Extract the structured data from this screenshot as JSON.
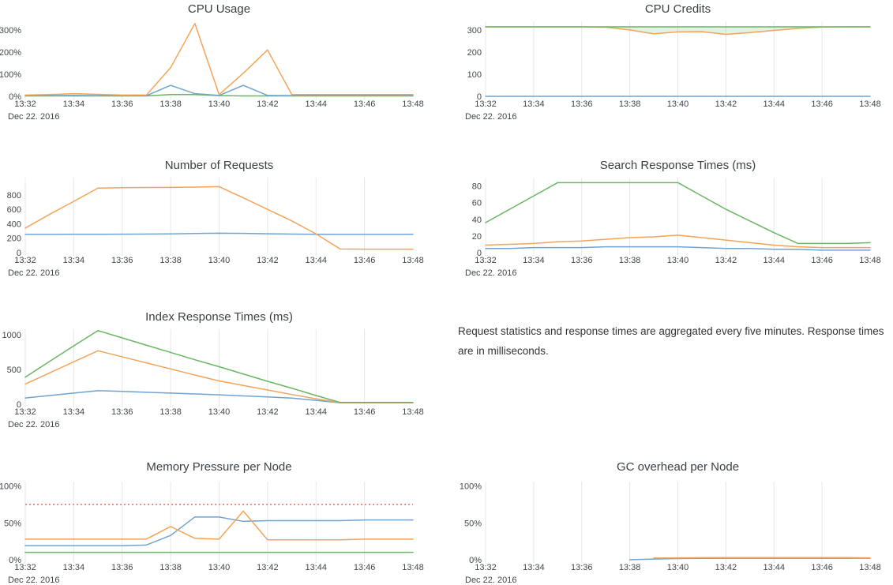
{
  "colors": {
    "blue": "#6fa3d0",
    "orange": "#f2a45a",
    "green": "#69b662",
    "red": "#ee8f8f",
    "grid": "#e7e7e7",
    "tick_text": "#40464b",
    "title_text": "#3b4045"
  },
  "x_axis": {
    "ticks": [
      "13:32",
      "13:34",
      "13:36",
      "13:38",
      "13:40",
      "13:42",
      "13:44",
      "13:46",
      "13:48"
    ],
    "date_label": "Dec 22. 2016",
    "point_interval": "1 minute"
  },
  "note": {
    "text": "Request statistics and response times are aggregated every five minutes. Response times are in milliseconds."
  },
  "chart_data": [
    {
      "type": "line",
      "title": "CPU Usage",
      "ylim": [
        0,
        340
      ],
      "grid": false,
      "x_range": [
        "13:32",
        "13:48"
      ],
      "y_ticks": [
        {
          "value": 0,
          "label": "0%"
        },
        {
          "value": 100,
          "label": "100%"
        },
        {
          "value": 200,
          "label": "200%"
        },
        {
          "value": 300,
          "label": "300%"
        }
      ],
      "series": [
        {
          "name": "green",
          "color": "green",
          "values": [
            2,
            2,
            2,
            2,
            2,
            2,
            8,
            8,
            3,
            2,
            2,
            2,
            2,
            2,
            2,
            2,
            2
          ]
        },
        {
          "name": "blue",
          "color": "blue",
          "values": [
            3,
            3,
            4,
            3,
            3,
            3,
            50,
            12,
            4,
            50,
            4,
            3,
            3,
            3,
            3,
            3,
            3
          ]
        },
        {
          "name": "orange",
          "color": "orange",
          "values": [
            6,
            8,
            12,
            9,
            6,
            6,
            130,
            330,
            8,
            105,
            210,
            8,
            8,
            8,
            8,
            8,
            8
          ]
        }
      ]
    },
    {
      "type": "line",
      "title": "CPU Credits",
      "ylim": [
        0,
        340
      ],
      "grid": true,
      "x_range": [
        "13:32",
        "13:48"
      ],
      "y_ticks": [
        {
          "value": 0,
          "label": "0"
        },
        {
          "value": 100,
          "label": "100"
        },
        {
          "value": 200,
          "label": "200"
        },
        {
          "value": 300,
          "label": "300"
        }
      ],
      "fill_between": {
        "upper": "green",
        "lower": "orange",
        "opacity": 0.18
      },
      "series": [
        {
          "name": "blue",
          "color": "blue",
          "values": [
            0,
            0,
            0,
            0,
            0,
            0,
            0,
            0,
            0,
            0,
            0,
            0,
            0,
            0,
            0,
            0,
            0
          ]
        },
        {
          "name": "orange",
          "color": "orange",
          "values": [
            315,
            315,
            315,
            315,
            315,
            313,
            301,
            283,
            292,
            293,
            281,
            289,
            299,
            308,
            314,
            315,
            315
          ]
        },
        {
          "name": "green",
          "color": "green",
          "values": [
            315,
            315,
            315,
            315,
            315,
            315,
            315,
            315,
            315,
            315,
            315,
            315,
            315,
            315,
            315,
            315,
            315
          ]
        }
      ]
    },
    {
      "type": "line",
      "title": "Number of Requests",
      "ylim": [
        0,
        1040
      ],
      "grid": true,
      "x_range": [
        "13:32",
        "13:48"
      ],
      "y_ticks": [
        {
          "value": 0,
          "label": "0"
        },
        {
          "value": 200,
          "label": "200"
        },
        {
          "value": 400,
          "label": "400"
        },
        {
          "value": 600,
          "label": "600"
        },
        {
          "value": 800,
          "label": "800"
        }
      ],
      "series": [
        {
          "name": "blue",
          "color": "blue",
          "values": [
            253,
            253,
            254,
            255,
            256,
            257,
            260,
            265,
            270,
            267,
            262,
            257,
            254,
            253,
            253,
            253,
            254
          ]
        },
        {
          "name": "orange",
          "color": "orange",
          "values": [
            340,
            530,
            710,
            895,
            900,
            903,
            905,
            908,
            915,
            760,
            600,
            440,
            260,
            50,
            48,
            48,
            48
          ]
        }
      ]
    },
    {
      "type": "line",
      "title": "Search Response Times (ms)",
      "ylim": [
        0,
        90
      ],
      "grid": true,
      "x_range": [
        "13:32",
        "13:48"
      ],
      "y_ticks": [
        {
          "value": 0,
          "label": "0"
        },
        {
          "value": 20,
          "label": "20"
        },
        {
          "value": 40,
          "label": "40"
        },
        {
          "value": 60,
          "label": "60"
        },
        {
          "value": 80,
          "label": "80"
        }
      ],
      "series": [
        {
          "name": "blue",
          "color": "blue",
          "values": [
            5,
            5,
            6,
            6,
            6,
            7,
            7,
            7,
            7,
            6,
            5,
            5,
            4,
            4,
            3,
            3,
            3
          ]
        },
        {
          "name": "orange",
          "color": "orange",
          "values": [
            9,
            10,
            11,
            13,
            14,
            16,
            18,
            19,
            21,
            18,
            15,
            12,
            9,
            7,
            6,
            6,
            6
          ]
        },
        {
          "name": "green",
          "color": "green",
          "values": [
            36,
            52,
            68,
            84,
            84,
            84,
            84,
            84,
            84,
            68,
            52,
            38,
            24,
            11,
            11,
            11,
            12
          ]
        }
      ]
    },
    {
      "type": "line",
      "title": "Index Response Times (ms)",
      "ylim": [
        0,
        1080
      ],
      "grid": true,
      "x_range": [
        "13:32",
        "13:48"
      ],
      "y_ticks": [
        {
          "value": 0,
          "label": "0"
        },
        {
          "value": 500,
          "label": "500"
        },
        {
          "value": 1000,
          "label": "1000"
        }
      ],
      "series": [
        {
          "name": "blue",
          "color": "blue",
          "values": [
            90,
            125,
            160,
            195,
            185,
            172,
            160,
            148,
            135,
            120,
            105,
            88,
            55,
            20,
            20,
            20,
            20
          ]
        },
        {
          "name": "orange",
          "color": "orange",
          "values": [
            290,
            450,
            610,
            770,
            683,
            595,
            508,
            420,
            335,
            270,
            205,
            140,
            78,
            22,
            22,
            22,
            22
          ]
        },
        {
          "name": "green",
          "color": "green",
          "values": [
            390,
            615,
            840,
            1060,
            955,
            850,
            745,
            640,
            540,
            435,
            330,
            230,
            125,
            25,
            25,
            25,
            25
          ]
        }
      ]
    },
    {
      "type": "line",
      "title": "Memory Pressure per Node",
      "ylim": [
        0,
        106
      ],
      "grid": true,
      "x_range": [
        "13:32",
        "13:48"
      ],
      "y_ticks": [
        {
          "value": 0,
          "label": "0%"
        },
        {
          "value": 50,
          "label": "50%"
        },
        {
          "value": 100,
          "label": "100%"
        }
      ],
      "threshold": {
        "value": 75,
        "color": "red",
        "style": "dashed"
      },
      "series": [
        {
          "name": "green",
          "color": "green",
          "values": [
            10,
            10,
            10,
            10,
            10,
            10,
            10,
            10,
            10,
            10,
            10,
            10,
            10,
            10,
            10,
            10,
            10
          ]
        },
        {
          "name": "blue",
          "color": "blue",
          "values": [
            19,
            19,
            19,
            19,
            19,
            20,
            33,
            58,
            58,
            52,
            53,
            53,
            53,
            53,
            54,
            54,
            54
          ]
        },
        {
          "name": "orange",
          "color": "orange",
          "values": [
            28,
            28,
            28,
            28,
            28,
            28,
            45,
            29,
            28,
            66,
            27,
            27,
            27,
            27,
            28,
            28,
            28
          ]
        }
      ]
    },
    {
      "type": "line",
      "title": "GC overhead per Node",
      "ylim": [
        0,
        106
      ],
      "grid": true,
      "x_range": [
        "13:32",
        "13:48"
      ],
      "y_ticks": [
        {
          "value": 0,
          "label": "0%"
        },
        {
          "value": 50,
          "label": "50%"
        },
        {
          "value": 100,
          "label": "100%"
        }
      ],
      "series": [
        {
          "name": "blue",
          "color": "blue",
          "start": 6,
          "values": [
            0,
            1,
            1.6,
            1.9,
            2,
            2,
            2,
            2,
            2,
            2,
            2
          ]
        },
        {
          "name": "orange",
          "color": "orange",
          "start": 7,
          "values": [
            2.3,
            2.6,
            2.8,
            2.9,
            2.9,
            2.9,
            2.9,
            2.9,
            2.9,
            2.6
          ]
        }
      ]
    }
  ]
}
